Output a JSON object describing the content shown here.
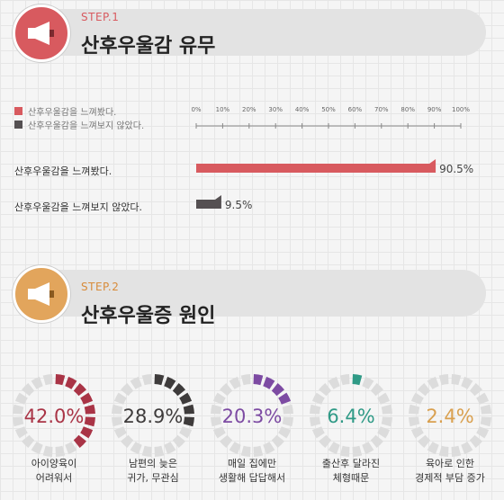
{
  "step1": {
    "step_label": "STEP.1",
    "title": "산후우울감 유무"
  },
  "step2": {
    "step_label": "STEP.2",
    "title": "산후우울증 원인"
  },
  "colors": {
    "accent_red": "#d85a5f",
    "dark_gray": "#555052",
    "orange": "#e2a55c",
    "track": "#dcdcdc"
  },
  "chart_data": [
    {
      "type": "bar",
      "orientation": "horizontal",
      "categories": [
        "산후우울감을 느껴봤다.",
        "산후우울감을 느껴보지 않았다."
      ],
      "values": [
        90.5,
        9.5
      ],
      "value_labels": [
        "90.5%",
        "9.5%"
      ],
      "legend": [
        "산후우울감을 느껴봤다.",
        "산후우울감을 느껴보지 않았다."
      ],
      "xticks": [
        "0%",
        "10%",
        "20%",
        "30%",
        "40%",
        "50%",
        "60%",
        "70%",
        "80%",
        "90%",
        "100%"
      ],
      "xlim": [
        0,
        100
      ],
      "colors": [
        "#d85a5f",
        "#555052"
      ]
    },
    {
      "type": "pie",
      "style": "segmented-donut",
      "slices": [
        {
          "value": 42.0,
          "label": "42.0%",
          "caption": [
            "아이양육이",
            "어려워서"
          ],
          "color": "#a93446"
        },
        {
          "value": 28.9,
          "label": "28.9%",
          "caption": [
            "남편의 늦은",
            "귀가, 무관심"
          ],
          "color": "#3e3b3b"
        },
        {
          "value": 20.3,
          "label": "20.3%",
          "caption": [
            "매일 집에만",
            "생활해 답답해서"
          ],
          "color": "#7d4ba3"
        },
        {
          "value": 6.4,
          "label": "6.4%",
          "caption": [
            "출산후 달라진",
            "체형때문"
          ],
          "color": "#2f9a86"
        },
        {
          "value": 2.4,
          "label": "2.4%",
          "caption": [
            "육아로 인한",
            "경제적 부담 증가"
          ],
          "color": "#d9a04f"
        }
      ]
    }
  ]
}
